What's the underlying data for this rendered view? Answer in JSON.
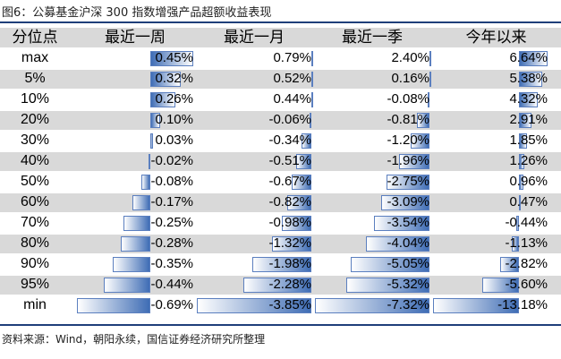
{
  "title": "图6：公募基金沪深 300 指数增强产品超额收益表现",
  "source": "资料来源：Wind，朝阳永续，国信证券经济研究所整理",
  "chart_data": {
    "type": "table",
    "row_header": "分位点",
    "columns": [
      "最近一周",
      "最近一月",
      "最近一季",
      "今年以来"
    ],
    "rows": [
      "max",
      "5%",
      "10%",
      "20%",
      "30%",
      "40%",
      "50%",
      "60%",
      "70%",
      "80%",
      "90%",
      "95%",
      "min"
    ],
    "series": [
      {
        "name": "最近一周",
        "values": [
          0.45,
          0.32,
          0.26,
          0.1,
          0.03,
          -0.02,
          -0.08,
          -0.17,
          -0.25,
          -0.28,
          -0.35,
          -0.44,
          -0.69
        ]
      },
      {
        "name": "最近一月",
        "values": [
          0.79,
          0.52,
          0.44,
          -0.06,
          -0.34,
          -0.51,
          -0.67,
          -0.82,
          -0.98,
          -1.32,
          -1.98,
          -2.28,
          -3.85
        ]
      },
      {
        "name": "最近一季",
        "values": [
          2.4,
          0.16,
          -0.08,
          -0.81,
          -1.2,
          -1.96,
          -2.75,
          -3.09,
          -3.54,
          -4.04,
          -5.05,
          -5.32,
          -7.32
        ]
      },
      {
        "name": "今年以来",
        "values": [
          6.64,
          5.38,
          4.32,
          2.91,
          1.85,
          1.26,
          0.96,
          0.47,
          -0.44,
          -1.13,
          -2.82,
          -5.6,
          -13.18
        ]
      }
    ],
    "value_format": "percent",
    "bar_colors": {
      "fill": "#3f6db5",
      "border": "#5b7fbf"
    }
  }
}
